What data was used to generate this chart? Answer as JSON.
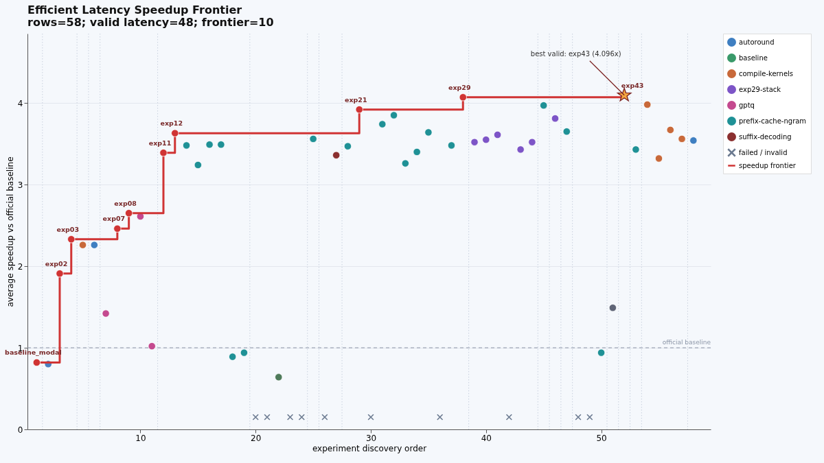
{
  "chart_data": {
    "type": "scatter",
    "title": "Efficient Latency Speedup Frontier",
    "subtitle": "rows=58; valid latency=48; frontier=10",
    "xlabel": "experiment discovery order",
    "ylabel": "average speedup vs official baseline",
    "xlim": [
      0.2,
      59.5
    ],
    "ylim": [
      0,
      4.85
    ],
    "xticks": [
      10,
      20,
      30,
      40,
      50
    ],
    "yticks": [
      0,
      1,
      2,
      3,
      4
    ],
    "grid": "y",
    "legend": "top right",
    "marker": "circle",
    "series": [
      {
        "name": "autoround",
        "color": "#3f7fc1",
        "x": [
          6,
          58
        ],
        "values": [
          2.26,
          3.54
        ]
      },
      {
        "name": "baseline",
        "color": "#3a9a6a"
      },
      {
        "name": "compile-kernels",
        "color": "#c8693a",
        "x": [
          5,
          54,
          55,
          56,
          57
        ],
        "values": [
          2.26,
          3.98,
          3.32,
          3.67,
          3.56
        ]
      },
      {
        "name": "exp29-stack",
        "color": "#7d55c7",
        "x": [
          39,
          40,
          41,
          43,
          44,
          46
        ],
        "values": [
          3.52,
          3.55,
          3.61,
          3.43,
          3.52,
          3.81
        ]
      },
      {
        "name": "gptq",
        "color": "#c44a8f",
        "x": [
          7,
          10,
          11
        ],
        "values": [
          1.42,
          2.61,
          1.02
        ]
      },
      {
        "color": "#5f6577",
        "x": [
          51
        ],
        "values": [
          1.49
        ]
      },
      {
        "name": "prefix-cache-ngram",
        "color": "#1f9196",
        "x": [
          14,
          15,
          16,
          17,
          18,
          19,
          25,
          28,
          31,
          32,
          33,
          34,
          35,
          37,
          45,
          47,
          50,
          53
        ],
        "values": [
          3.48,
          3.24,
          3.49,
          3.49,
          0.89,
          0.94,
          3.56,
          3.47,
          3.74,
          3.85,
          3.26,
          3.4,
          3.64,
          3.48,
          3.97,
          3.65,
          0.94,
          3.43
        ]
      },
      {
        "color": "#4e7a5a",
        "x": [
          22
        ],
        "values": [
          0.64
        ]
      },
      {
        "name": "suffix-decoding",
        "color": "#8b3030",
        "x": [
          27
        ],
        "values": [
          3.36
        ]
      },
      {
        "color": "#4a7fc0",
        "x": [
          2
        ],
        "values": [
          0.8
        ]
      },
      {
        "name": "failed / invalid",
        "color": "#6b7a90",
        "marker": "cross",
        "x": [
          20,
          21,
          23,
          24,
          26,
          30,
          36,
          42,
          48,
          49
        ],
        "values": [
          0.15,
          0.15,
          0.15,
          0.15,
          0.15,
          0.15,
          0.15,
          0.15,
          0.15,
          0.15
        ]
      },
      {
        "name": "speedup frontier",
        "type": "step",
        "color": "#d03434",
        "marker": "none",
        "line_style": "solid",
        "x": [
          1,
          3,
          4,
          8,
          9,
          12,
          13,
          29,
          38,
          52
        ],
        "values": [
          0.82,
          1.91,
          2.33,
          2.46,
          2.65,
          3.39,
          3.63,
          3.92,
          4.07,
          4.096
        ]
      },
      {
        "color": "#d03434",
        "x": [
          1,
          3,
          4,
          8,
          9,
          12,
          13,
          29,
          38
        ],
        "values": [
          0.82,
          1.91,
          2.33,
          2.46,
          2.65,
          3.39,
          3.63,
          3.92,
          4.07
        ],
        "value_labels": [
          "baseline_modal",
          "exp02",
          "exp03",
          "exp07",
          "exp08",
          "exp11",
          "exp12",
          "exp21",
          "exp29"
        ]
      },
      {
        "color": "#f4a640",
        "marker": "star",
        "x": [
          52
        ],
        "values": [
          4.096
        ],
        "value_labels": [
          "exp43"
        ]
      }
    ],
    "ref_lines": [
      {
        "axis": "y",
        "value": 1,
        "label": "official baseline",
        "color": "#8a94a6",
        "line_style": "dashed"
      },
      {
        "axis": "x",
        "value": 1.5,
        "line_style": "dotted"
      },
      {
        "axis": "x",
        "value": 4.5,
        "line_style": "dotted"
      },
      {
        "axis": "x",
        "value": 5.5,
        "line_style": "dotted"
      },
      {
        "axis": "x",
        "value": 6.5,
        "line_style": "dotted"
      },
      {
        "axis": "x",
        "value": 11.5,
        "line_style": "dotted"
      },
      {
        "axis": "x",
        "value": 19.5,
        "line_style": "dotted"
      },
      {
        "axis": "x",
        "value": 24.5,
        "line_style": "dotted"
      },
      {
        "axis": "x",
        "value": 25.5,
        "line_style": "dotted"
      },
      {
        "axis": "x",
        "value": 27.5,
        "line_style": "dotted"
      },
      {
        "axis": "x",
        "value": 38.5,
        "line_style": "dotted"
      },
      {
        "axis": "x",
        "value": 44.5,
        "line_style": "dotted"
      },
      {
        "axis": "x",
        "value": 45.5,
        "line_style": "dotted"
      },
      {
        "axis": "x",
        "value": 46.5,
        "line_style": "dotted"
      },
      {
        "axis": "x",
        "value": 47.5,
        "line_style": "dotted"
      },
      {
        "axis": "x",
        "value": 50.5,
        "line_style": "dotted"
      },
      {
        "axis": "x",
        "value": 51.5,
        "line_style": "dotted"
      },
      {
        "axis": "x",
        "value": 52.5,
        "line_style": "dotted"
      },
      {
        "axis": "x",
        "value": 53.5,
        "line_style": "dotted"
      },
      {
        "axis": "x",
        "value": 57.5,
        "line_style": "dotted"
      }
    ],
    "annotations": [
      {
        "text": "best valid: exp43 (4.096x)",
        "x": 52,
        "y": 4.096
      }
    ]
  }
}
